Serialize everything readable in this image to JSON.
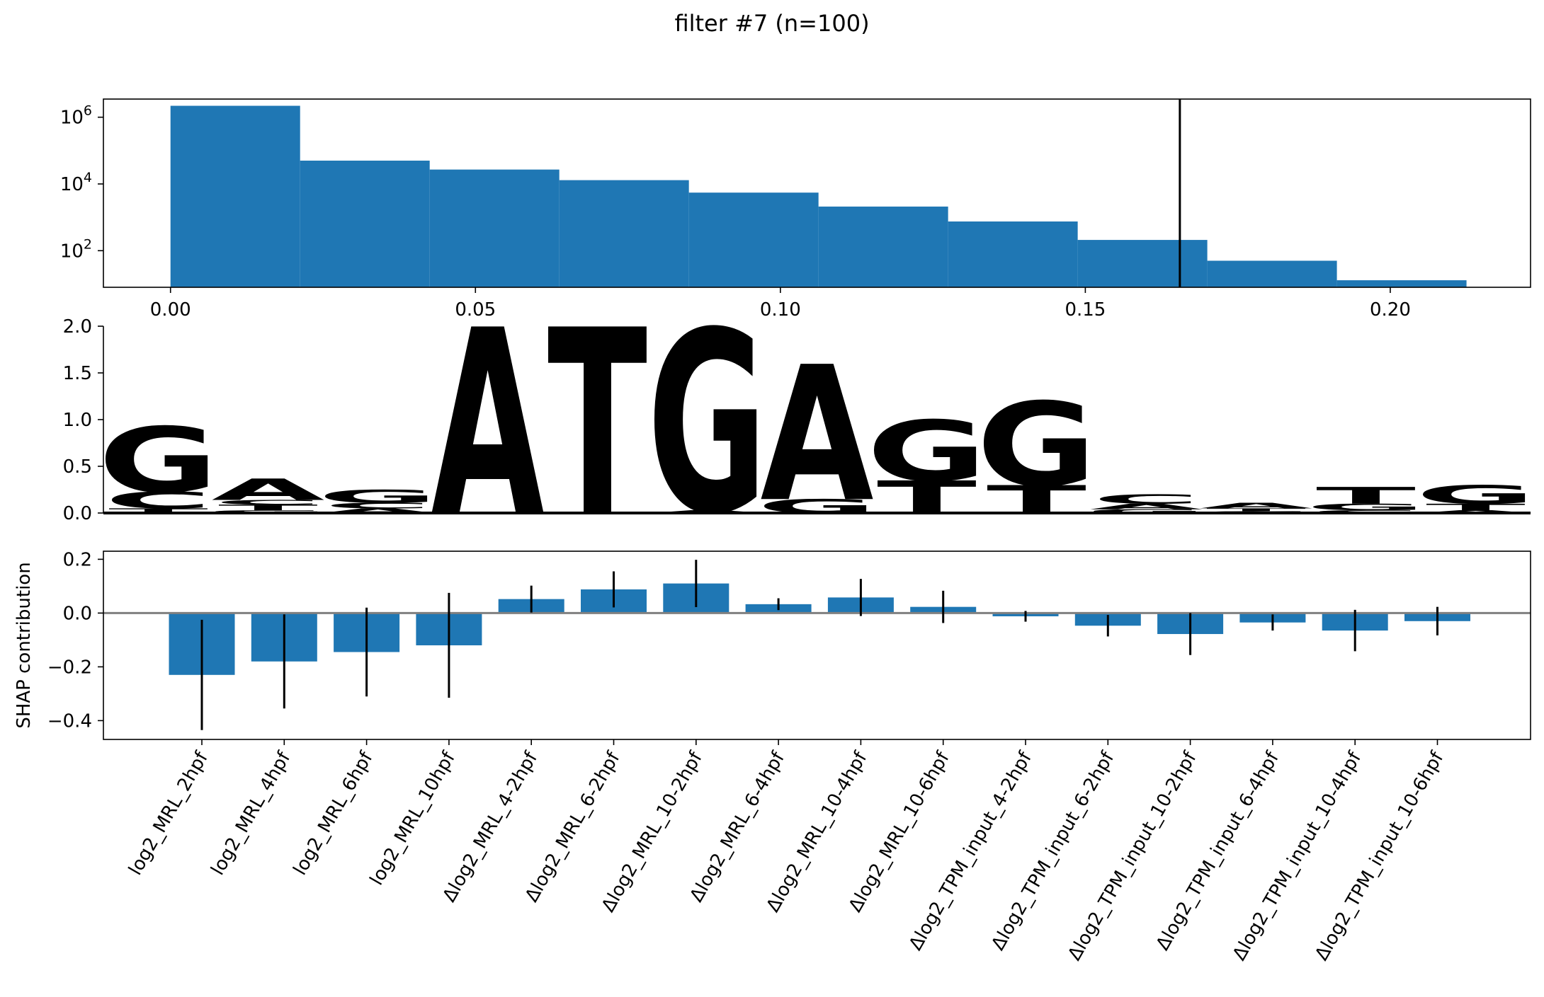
{
  "figure_title": "filter #7 (n=100)",
  "colors": {
    "bar": "#1f77b4",
    "A": "#109648",
    "C": "#255c99",
    "G": "#f7b32b",
    "T": "#d62839",
    "zero_line": "#808080"
  },
  "chart_data": [
    {
      "type": "bar",
      "subtype": "histogram",
      "y_scale": "log",
      "bin_edges": [
        0.0,
        0.02125,
        0.0425,
        0.06375,
        0.085,
        0.10625,
        0.1275,
        0.14875,
        0.17,
        0.19125,
        0.2125
      ],
      "counts": [
        2200000,
        50000,
        27000,
        13000,
        5500,
        2100,
        750,
        210,
        50,
        13
      ],
      "xlim": [
        -0.011,
        0.223
      ],
      "ylim": [
        8,
        3500000
      ],
      "xticks": [
        0.0,
        0.05,
        0.1,
        0.15,
        0.2
      ],
      "xtick_labels": [
        "0.00",
        "0.05",
        "0.10",
        "0.15",
        "0.20"
      ],
      "yticks": [
        100,
        10000,
        1000000
      ],
      "ytick_labels": [
        {
          "base": "10",
          "exp": "2"
        },
        {
          "base": "10",
          "exp": "4"
        },
        {
          "base": "10",
          "exp": "6"
        }
      ],
      "threshold_line": 0.1655
    },
    {
      "type": "sequence-logo",
      "ylim": [
        0,
        2.0
      ],
      "yticks": [
        0.0,
        0.5,
        1.0,
        1.5,
        2.0
      ],
      "ytick_labels": [
        "0.0",
        "0.5",
        "1.0",
        "1.5",
        "2.0"
      ],
      "positions": [
        [
          {
            "base": "T",
            "value": 0.05
          },
          {
            "base": "C",
            "value": 0.18
          },
          {
            "base": "G",
            "value": 0.7
          }
        ],
        [
          {
            "base": "G",
            "value": 0.03
          },
          {
            "base": "T",
            "value": 0.06
          },
          {
            "base": "C",
            "value": 0.05
          },
          {
            "base": "A",
            "value": 0.23
          }
        ],
        [
          {
            "base": "A",
            "value": 0.05
          },
          {
            "base": "C",
            "value": 0.06
          },
          {
            "base": "G",
            "value": 0.14
          }
        ],
        [
          {
            "base": "A",
            "value": 2.0
          }
        ],
        [
          {
            "base": "T",
            "value": 2.0
          }
        ],
        [
          {
            "base": "A",
            "value": 0.03
          },
          {
            "base": "G",
            "value": 1.95
          }
        ],
        [
          {
            "base": "G",
            "value": 0.15
          },
          {
            "base": "A",
            "value": 1.45
          }
        ],
        [
          {
            "base": "T",
            "value": 0.35
          },
          {
            "base": "G",
            "value": 0.65
          }
        ],
        [
          {
            "base": "T",
            "value": 0.3
          },
          {
            "base": "G",
            "value": 0.9
          }
        ],
        [
          {
            "base": "G",
            "value": 0.04
          },
          {
            "base": "A",
            "value": 0.06
          },
          {
            "base": "C",
            "value": 0.1
          }
        ],
        [
          {
            "base": "C",
            "value": 0.02
          },
          {
            "base": "T",
            "value": 0.03
          },
          {
            "base": "A",
            "value": 0.06
          }
        ],
        [
          {
            "base": "C",
            "value": 0.03
          },
          {
            "base": "G",
            "value": 0.07
          },
          {
            "base": "T",
            "value": 0.18
          }
        ],
        [
          {
            "base": "A",
            "value": 0.03
          },
          {
            "base": "T",
            "value": 0.07
          },
          {
            "base": "G",
            "value": 0.2
          }
        ]
      ]
    },
    {
      "type": "bar",
      "ylabel": "SHAP contribution",
      "ylim": [
        -0.47,
        0.23
      ],
      "yticks": [
        -0.4,
        -0.2,
        0.0,
        0.2
      ],
      "ytick_labels": [
        "−0.4",
        "−0.2",
        "0.0",
        "0.2"
      ],
      "categories": [
        "log2_MRL_2hpf",
        "log2_MRL_4hpf",
        "log2_MRL_6hpf",
        "log2_MRL_10hpf",
        "Δlog2_MRL_4-2hpf",
        "Δlog2_MRL_6-2hpf",
        "Δlog2_MRL_10-2hpf",
        "Δlog2_MRL_6-4hpf",
        "Δlog2_MRL_10-4hpf",
        "Δlog2_MRL_10-6hpf",
        "Δlog2_TPM_input_4-2hpf",
        "Δlog2_TPM_input_6-2hpf",
        "Δlog2_TPM_input_10-2hpf",
        "Δlog2_TPM_input_6-4hpf",
        "Δlog2_TPM_input_10-4hpf",
        "Δlog2_TPM_input_10-6hpf"
      ],
      "values": [
        -0.23,
        -0.18,
        -0.145,
        -0.12,
        0.052,
        0.088,
        0.11,
        0.033,
        0.058,
        0.023,
        -0.012,
        -0.047,
        -0.078,
        -0.035,
        -0.065,
        -0.03
      ],
      "errors": [
        0.205,
        0.175,
        0.165,
        0.195,
        0.05,
        0.067,
        0.088,
        0.022,
        0.069,
        0.06,
        0.02,
        0.04,
        0.078,
        0.03,
        0.077,
        0.053
      ]
    }
  ]
}
